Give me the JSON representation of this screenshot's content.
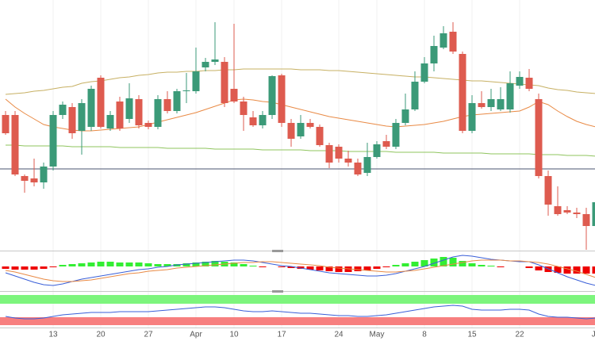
{
  "chart_data": [
    {
      "type": "candlestick",
      "categories": [
        null,
        null,
        null,
        null,
        null,
        "13",
        null,
        null,
        null,
        null,
        "20",
        null,
        null,
        null,
        null,
        "27",
        null,
        null,
        null,
        null,
        "Apr",
        null,
        null,
        null,
        "10",
        null,
        null,
        null,
        null,
        "17",
        null,
        null,
        null,
        null,
        null,
        "24",
        null,
        null,
        null,
        "May",
        null,
        null,
        null,
        null,
        "8",
        null,
        null,
        null,
        null,
        "15",
        null,
        null,
        null,
        null,
        "22",
        null,
        null,
        null,
        null,
        null,
        null,
        null,
        "Ju"
      ],
      "open": [
        170,
        170,
        93,
        90,
        85,
        105,
        170,
        180,
        150,
        155,
        217,
        153,
        187,
        165,
        190,
        160,
        155,
        190,
        175,
        200,
        200,
        230,
        237,
        237,
        203,
        187,
        167,
        157,
        170,
        220,
        160,
        143,
        160,
        155,
        132,
        130,
        115,
        110,
        97,
        117,
        137,
        130,
        160,
        177,
        212,
        235,
        255,
        275,
        247,
        150,
        185,
        180,
        177,
        177,
        207,
        217,
        190,
        93,
        55,
        50,
        47,
        45,
        30
      ],
      "high": [
        175,
        175,
        95,
        115,
        110,
        175,
        187,
        185,
        190,
        207,
        220,
        175,
        193,
        210,
        195,
        163,
        195,
        200,
        203,
        223,
        255,
        242,
        287,
        243,
        285,
        193,
        175,
        175,
        220,
        222,
        165,
        170,
        165,
        158,
        135,
        133,
        125,
        115,
        135,
        137,
        145,
        165,
        197,
        225,
        243,
        270,
        282,
        287,
        250,
        195,
        200,
        203,
        205,
        225,
        225,
        228,
        197,
        100,
        80,
        55,
        53,
        53,
        65
      ],
      "low": [
        145,
        93,
        72,
        80,
        77,
        100,
        165,
        140,
        120,
        150,
        153,
        150,
        150,
        160,
        153,
        152,
        152,
        172,
        172,
        185,
        197,
        225,
        233,
        180,
        185,
        150,
        155,
        153,
        165,
        155,
        130,
        140,
        153,
        130,
        103,
        110,
        105,
        93,
        93,
        115,
        127,
        127,
        157,
        175,
        210,
        225,
        253,
        247,
        147,
        147,
        178,
        175,
        175,
        173,
        203,
        200,
        90,
        43,
        43,
        45,
        40,
        0,
        25
      ],
      "close": [
        147,
        95,
        87,
        85,
        105,
        170,
        183,
        147,
        185,
        203,
        155,
        170,
        153,
        191,
        157,
        155,
        190,
        175,
        200,
        201,
        225,
        237,
        240,
        185,
        187,
        170,
        157,
        170,
        219,
        160,
        140,
        160,
        155,
        132,
        110,
        115,
        110,
        95,
        117,
        133,
        130,
        160,
        177,
        212,
        235,
        257,
        273,
        250,
        150,
        185,
        180,
        190,
        190,
        210,
        218,
        203,
        93,
        57,
        45,
        47,
        45,
        30,
        60
      ],
      "up_color": "#3b9a78",
      "down_color": "#de5b4f",
      "ylim": [
        0,
        315
      ],
      "level": 102,
      "level_color": "#4a5470",
      "grid": true,
      "series": [
        {
          "color": "#e98a45",
          "values": [
            190,
            180,
            172,
            165,
            158,
            155,
            153,
            151,
            150,
            150,
            151,
            152,
            153,
            154,
            155,
            158,
            161,
            164,
            167,
            170,
            173,
            177,
            181,
            185,
            189,
            190,
            189,
            187,
            186,
            183,
            180,
            177,
            174,
            171,
            168,
            166,
            164,
            162,
            160,
            158,
            156,
            155,
            156,
            157,
            158,
            160,
            162,
            165,
            168,
            170,
            171,
            172,
            173,
            174,
            175,
            180,
            187,
            183,
            175,
            168,
            162,
            158,
            155
          ]
        },
        {
          "color": "#c7b063",
          "values": [
            196,
            197,
            198,
            200,
            201,
            203,
            205,
            206,
            210,
            212,
            213,
            215,
            217,
            218,
            220,
            221,
            223,
            224,
            224,
            225,
            225,
            226,
            226,
            227,
            227,
            228,
            228,
            228,
            228,
            228,
            228,
            227,
            227,
            227,
            226,
            226,
            225,
            224,
            223,
            222,
            221,
            220,
            219,
            218,
            218,
            217,
            216,
            215,
            214,
            213,
            213,
            212,
            211,
            210,
            209,
            208,
            207,
            204,
            202,
            201,
            199,
            198,
            197
          ]
        },
        {
          "color": "#8fc45e",
          "values": [
            132,
            132,
            131,
            131,
            131,
            131,
            131,
            130,
            130,
            130,
            130,
            130,
            129,
            129,
            129,
            129,
            129,
            128,
            128,
            128,
            128,
            128,
            127,
            127,
            127,
            127,
            127,
            126,
            126,
            126,
            126,
            126,
            125,
            125,
            125,
            125,
            124,
            124,
            124,
            124,
            124,
            123,
            123,
            123,
            123,
            123,
            122,
            122,
            122,
            122,
            122,
            121,
            121,
            121,
            121,
            121,
            120,
            120,
            120,
            119,
            119,
            119,
            118
          ]
        }
      ]
    },
    {
      "type": "macd",
      "ylim": [
        -29,
        18
      ],
      "values": [
        -3,
        -4,
        -4,
        -4,
        -3,
        -1,
        2,
        3,
        4,
        5,
        6,
        6,
        5,
        5,
        5,
        4,
        3,
        3,
        3,
        4,
        5,
        6,
        7,
        6,
        5,
        3,
        1,
        -1,
        0,
        -1,
        -2,
        -3,
        -4,
        -5,
        -6,
        -7,
        -7,
        -6,
        -5,
        -3,
        -1,
        2,
        4,
        6,
        8,
        10,
        12,
        11,
        7,
        4,
        2,
        1,
        -1,
        0,
        0,
        -2,
        -5,
        -7,
        -8,
        -9,
        -9,
        -9,
        -9
      ],
      "up_color": "#33ee33",
      "down_color": "#ee0000",
      "series": [
        {
          "color": "#3a5fd8",
          "values": [
            -8,
            -12,
            -16,
            -20,
            -23,
            -24,
            -22,
            -19,
            -16,
            -14,
            -12,
            -10,
            -8,
            -6,
            -4,
            -3,
            -1,
            0,
            2,
            3,
            4,
            5,
            6,
            7,
            8,
            8,
            7,
            5,
            3,
            1,
            0,
            -2,
            -4,
            -6,
            -8,
            -9,
            -10,
            -11,
            -12,
            -12,
            -11,
            -9,
            -6,
            -3,
            0,
            4,
            8,
            12,
            14,
            13,
            11,
            9,
            8,
            7,
            6,
            6,
            2,
            -3,
            -8,
            -13,
            -17,
            -21,
            -24
          ]
        },
        {
          "color": "#e98a45",
          "values": [
            -5,
            -7,
            -10,
            -13,
            -16,
            -18,
            -19,
            -19,
            -18,
            -17,
            -15,
            -13,
            -11,
            -9,
            -8,
            -6,
            -5,
            -4,
            -2,
            -1,
            0,
            1,
            2,
            3,
            4,
            5,
            5,
            6,
            6,
            5,
            4,
            3,
            2,
            1,
            -1,
            -2,
            -3,
            -4,
            -5,
            -6,
            -7,
            -7,
            -6,
            -5,
            -3,
            -1,
            1,
            3,
            5,
            7,
            8,
            8,
            8,
            7,
            7,
            6,
            5,
            3,
            0,
            -3,
            -6,
            -10,
            -14
          ]
        }
      ]
    },
    {
      "type": "line",
      "ylim": [
        0,
        42
      ],
      "color": "#3a5fd8",
      "values": [
        13,
        11,
        10,
        10,
        11,
        13,
        15,
        16,
        17,
        18,
        18,
        18,
        19,
        19,
        19,
        19,
        20,
        21,
        22,
        23,
        24,
        25,
        25,
        24,
        22,
        20,
        19,
        19,
        20,
        19,
        18,
        17,
        17,
        16,
        15,
        14,
        14,
        13,
        13,
        14,
        15,
        17,
        19,
        21,
        23,
        25,
        26,
        27,
        26,
        22,
        21,
        21,
        21,
        22,
        22,
        21,
        16,
        13,
        12,
        12,
        11,
        10,
        11
      ]
    }
  ]
}
